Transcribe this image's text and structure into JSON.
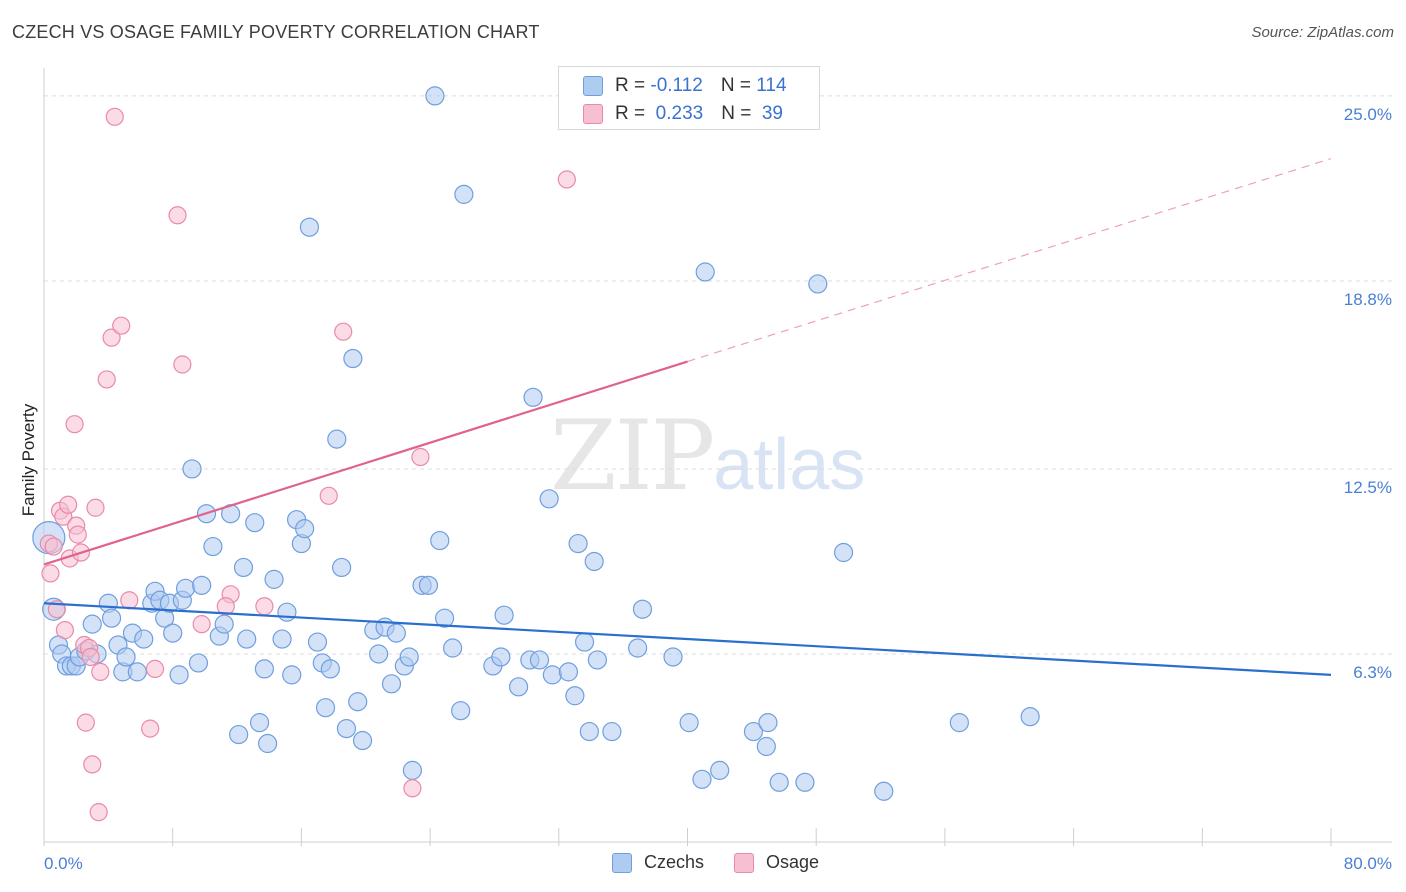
{
  "title": "CZECH VS OSAGE FAMILY POVERTY CORRELATION CHART",
  "source": "Source: ZipAtlas.com",
  "watermark": {
    "zip": "ZIP",
    "atlas": "atlas"
  },
  "legend": {
    "rows": [
      {
        "r_label": "R = ",
        "r_value": "-0.112",
        "n_label": "N = ",
        "n_value": "114"
      },
      {
        "r_label": "R = ",
        "r_value": " 0.233",
        "n_label": "N = ",
        "n_value": " 39"
      }
    ]
  },
  "bottom_legend": {
    "czechs": "Czechs",
    "osage": "Osage"
  },
  "colors": {
    "czechs_fill": "#aecbf0",
    "czechs_stroke": "#6f9fdf",
    "czechs_line": "#2a6fd0",
    "osage_fill": "#f7bfd2",
    "osage_stroke": "#e98aaa",
    "osage_line": "#e0638d"
  },
  "chart_data": {
    "type": "scatter",
    "title": "CZECH VS OSAGE FAMILY POVERTY CORRELATION CHART",
    "xlabel": "",
    "ylabel": "Family Poverty",
    "xlim": [
      0,
      80
    ],
    "ylim": [
      0,
      25.6
    ],
    "x_tick_labels": [
      "0.0%",
      "80.0%"
    ],
    "y_ticks": [
      6.3,
      12.5,
      18.8,
      25.0
    ],
    "y_tick_labels": [
      "6.3%",
      "12.5%",
      "18.8%",
      "25.0%"
    ],
    "grid": "horizontal dashed",
    "legend_position": "top-center",
    "series": [
      {
        "name": "Czechs",
        "points": [
          [
            0.3,
            10.2
          ],
          [
            0.6,
            7.8
          ],
          [
            0.9,
            6.6
          ],
          [
            1.1,
            6.3
          ],
          [
            1.4,
            5.9
          ],
          [
            1.7,
            5.9
          ],
          [
            2.0,
            5.9
          ],
          [
            2.2,
            6.2
          ],
          [
            2.6,
            6.4
          ],
          [
            3.0,
            7.3
          ],
          [
            3.3,
            6.3
          ],
          [
            4.0,
            8.0
          ],
          [
            4.2,
            7.5
          ],
          [
            4.6,
            6.6
          ],
          [
            4.9,
            5.7
          ],
          [
            5.1,
            6.2
          ],
          [
            5.5,
            7.0
          ],
          [
            5.8,
            5.7
          ],
          [
            6.2,
            6.8
          ],
          [
            6.7,
            8.0
          ],
          [
            6.9,
            8.4
          ],
          [
            7.2,
            8.1
          ],
          [
            7.5,
            7.5
          ],
          [
            7.8,
            8.0
          ],
          [
            8.0,
            7.0
          ],
          [
            8.4,
            5.6
          ],
          [
            8.6,
            8.1
          ],
          [
            8.8,
            8.5
          ],
          [
            9.2,
            12.5
          ],
          [
            9.6,
            6.0
          ],
          [
            9.8,
            8.6
          ],
          [
            10.1,
            11.0
          ],
          [
            10.5,
            9.9
          ],
          [
            10.9,
            6.9
          ],
          [
            11.2,
            7.3
          ],
          [
            11.6,
            11.0
          ],
          [
            12.1,
            3.6
          ],
          [
            12.4,
            9.2
          ],
          [
            12.6,
            6.8
          ],
          [
            13.1,
            10.7
          ],
          [
            13.4,
            4.0
          ],
          [
            13.7,
            5.8
          ],
          [
            13.9,
            3.3
          ],
          [
            14.3,
            8.8
          ],
          [
            14.8,
            6.8
          ],
          [
            15.1,
            7.7
          ],
          [
            15.4,
            5.6
          ],
          [
            15.7,
            10.8
          ],
          [
            16.0,
            10.0
          ],
          [
            16.2,
            10.5
          ],
          [
            16.5,
            20.6
          ],
          [
            17.0,
            6.7
          ],
          [
            17.3,
            6.0
          ],
          [
            17.5,
            4.5
          ],
          [
            17.8,
            5.8
          ],
          [
            18.2,
            13.5
          ],
          [
            18.5,
            9.2
          ],
          [
            18.8,
            3.8
          ],
          [
            19.2,
            16.2
          ],
          [
            19.5,
            4.7
          ],
          [
            19.8,
            3.4
          ],
          [
            20.5,
            7.1
          ],
          [
            20.8,
            6.3
          ],
          [
            21.2,
            7.2
          ],
          [
            21.6,
            5.3
          ],
          [
            21.9,
            7.0
          ],
          [
            22.4,
            5.9
          ],
          [
            22.7,
            6.2
          ],
          [
            22.9,
            2.4
          ],
          [
            23.5,
            8.6
          ],
          [
            23.9,
            8.6
          ],
          [
            24.3,
            25.0
          ],
          [
            24.6,
            10.1
          ],
          [
            24.9,
            7.5
          ],
          [
            25.4,
            6.5
          ],
          [
            25.9,
            4.4
          ],
          [
            26.1,
            21.7
          ],
          [
            27.9,
            5.9
          ],
          [
            28.4,
            6.2
          ],
          [
            28.6,
            7.6
          ],
          [
            29.5,
            5.2
          ],
          [
            30.2,
            6.1
          ],
          [
            30.4,
            14.9
          ],
          [
            30.8,
            6.1
          ],
          [
            31.4,
            11.5
          ],
          [
            31.6,
            5.6
          ],
          [
            32.6,
            5.7
          ],
          [
            33.0,
            4.9
          ],
          [
            33.2,
            10.0
          ],
          [
            33.6,
            6.7
          ],
          [
            33.9,
            3.7
          ],
          [
            34.2,
            9.4
          ],
          [
            34.4,
            6.1
          ],
          [
            35.3,
            3.7
          ],
          [
            36.9,
            6.5
          ],
          [
            37.2,
            7.8
          ],
          [
            39.1,
            6.2
          ],
          [
            40.1,
            4.0
          ],
          [
            40.9,
            2.1
          ],
          [
            42.0,
            2.4
          ],
          [
            41.1,
            19.1
          ],
          [
            44.1,
            3.7
          ],
          [
            45.0,
            4.0
          ],
          [
            44.9,
            3.2
          ],
          [
            45.7,
            2.0
          ],
          [
            47.3,
            2.0
          ],
          [
            48.1,
            18.7
          ],
          [
            49.7,
            9.7
          ],
          [
            52.2,
            1.7
          ],
          [
            56.9,
            4.0
          ],
          [
            61.3,
            4.2
          ]
        ],
        "trend": {
          "x": [
            0,
            80
          ],
          "y": [
            8.0,
            5.6
          ]
        }
      },
      {
        "name": "Osage",
        "points": [
          [
            0.3,
            10.0
          ],
          [
            0.4,
            9.0
          ],
          [
            0.6,
            9.9
          ],
          [
            0.8,
            7.8
          ],
          [
            1.0,
            11.1
          ],
          [
            1.2,
            10.9
          ],
          [
            1.3,
            7.1
          ],
          [
            1.5,
            11.3
          ],
          [
            1.6,
            9.5
          ],
          [
            1.9,
            14.0
          ],
          [
            2.0,
            10.6
          ],
          [
            2.1,
            10.3
          ],
          [
            2.3,
            9.7
          ],
          [
            2.5,
            6.6
          ],
          [
            2.6,
            4.0
          ],
          [
            2.8,
            6.5
          ],
          [
            2.9,
            6.2
          ],
          [
            3.0,
            2.6
          ],
          [
            3.2,
            11.2
          ],
          [
            3.4,
            1.0
          ],
          [
            3.5,
            5.7
          ],
          [
            3.9,
            15.5
          ],
          [
            4.2,
            16.9
          ],
          [
            4.4,
            24.3
          ],
          [
            4.8,
            17.3
          ],
          [
            5.3,
            8.1
          ],
          [
            6.6,
            3.8
          ],
          [
            6.9,
            5.8
          ],
          [
            8.3,
            21.0
          ],
          [
            8.6,
            16.0
          ],
          [
            9.8,
            7.3
          ],
          [
            11.6,
            8.3
          ],
          [
            11.3,
            7.9
          ],
          [
            13.7,
            7.9
          ],
          [
            18.6,
            17.1
          ],
          [
            17.7,
            11.6
          ],
          [
            22.9,
            1.8
          ],
          [
            23.4,
            12.9
          ],
          [
            32.5,
            22.2
          ]
        ],
        "trend": {
          "x": [
            0,
            40
          ],
          "y": [
            9.3,
            16.1
          ]
        },
        "trend_dashed_extension": {
          "x": [
            40,
            80
          ],
          "y": [
            16.1,
            22.9
          ]
        }
      }
    ]
  }
}
